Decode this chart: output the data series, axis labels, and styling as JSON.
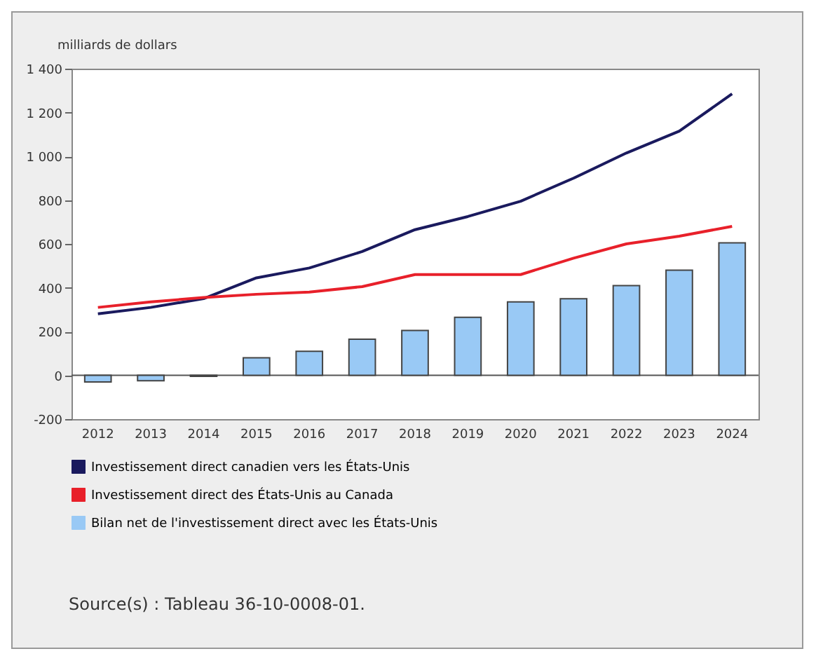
{
  "chart_data": {
    "type": "line",
    "ylabel": "milliards de dollars",
    "categories": [
      "2012",
      "2013",
      "2014",
      "2015",
      "2016",
      "2017",
      "2018",
      "2019",
      "2020",
      "2021",
      "2022",
      "2023",
      "2024"
    ],
    "series": [
      {
        "name": "Investissement direct canadien vers les États-Unis",
        "color": "#1a1a5e",
        "values": [
          281,
          310,
          350,
          445,
          490,
          565,
          665,
          725,
          795,
          900,
          1015,
          1115,
          1285
        ]
      },
      {
        "name": "Investissement direct des États-Unis au Canada",
        "color": "#e8202a",
        "values": [
          310,
          335,
          355,
          370,
          380,
          405,
          460,
          460,
          460,
          535,
          600,
          635,
          680
        ]
      },
      {
        "name": "Bilan net de l'investissement direct avec les États-Unis",
        "type": "bar",
        "color": "#99c9f5",
        "values": [
          -30,
          -25,
          -5,
          80,
          110,
          165,
          205,
          265,
          335,
          350,
          410,
          480,
          605
        ]
      }
    ],
    "ylim": [
      -200,
      1400
    ],
    "yticks": [
      -200,
      0,
      200,
      400,
      600,
      800,
      {
        "value": 1000,
        "label": "1 000"
      },
      {
        "value": 1200,
        "label": "1 200"
      },
      {
        "value": 1400,
        "label": "1 400"
      }
    ],
    "ref_lines": [
      {
        "axis": "y",
        "value": 0
      }
    ],
    "grid": false,
    "legend": "bottom",
    "annotations": [
      "Source(s) : Tableau 36-10-0008-01."
    ]
  }
}
